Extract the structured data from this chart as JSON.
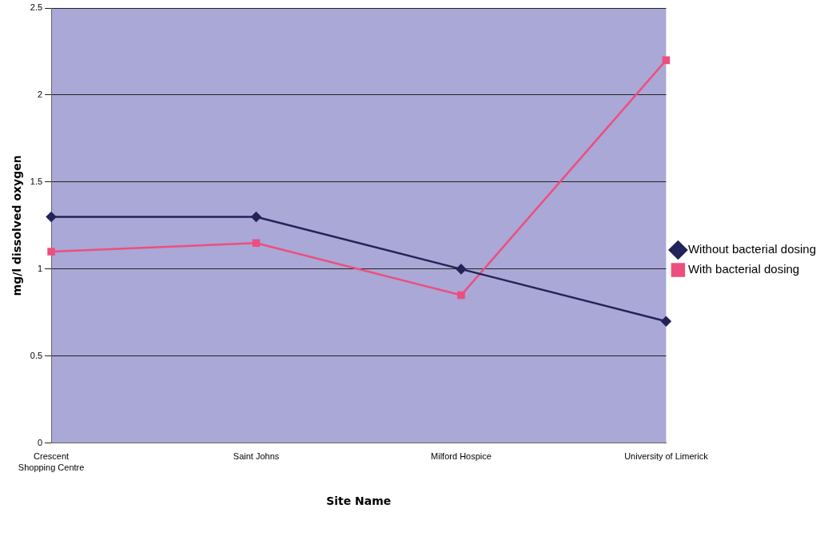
{
  "chart_data": {
    "type": "line",
    "xlabel": "Site Name",
    "ylabel": "mg/l dissolved oxygen",
    "categories": [
      "Crescent Shopping Centre",
      "Saint Johns",
      "Milford Hospice",
      "University of Limerick"
    ],
    "series": [
      {
        "name": "Without bacterial dosing",
        "color": "#23235a",
        "values": [
          1.3,
          1.3,
          1.0,
          0.7
        ],
        "marker": "diamond"
      },
      {
        "name": "With bacterial dosing",
        "color": "#ec4f7f",
        "values": [
          1.1,
          1.15,
          0.85,
          2.2
        ],
        "marker": "square"
      }
    ],
    "ylim": [
      0,
      2.5
    ],
    "yticks": [
      0,
      0.5,
      1,
      1.5,
      2,
      2.5
    ],
    "grid": "y",
    "legend": "right",
    "line_style": "solid"
  }
}
